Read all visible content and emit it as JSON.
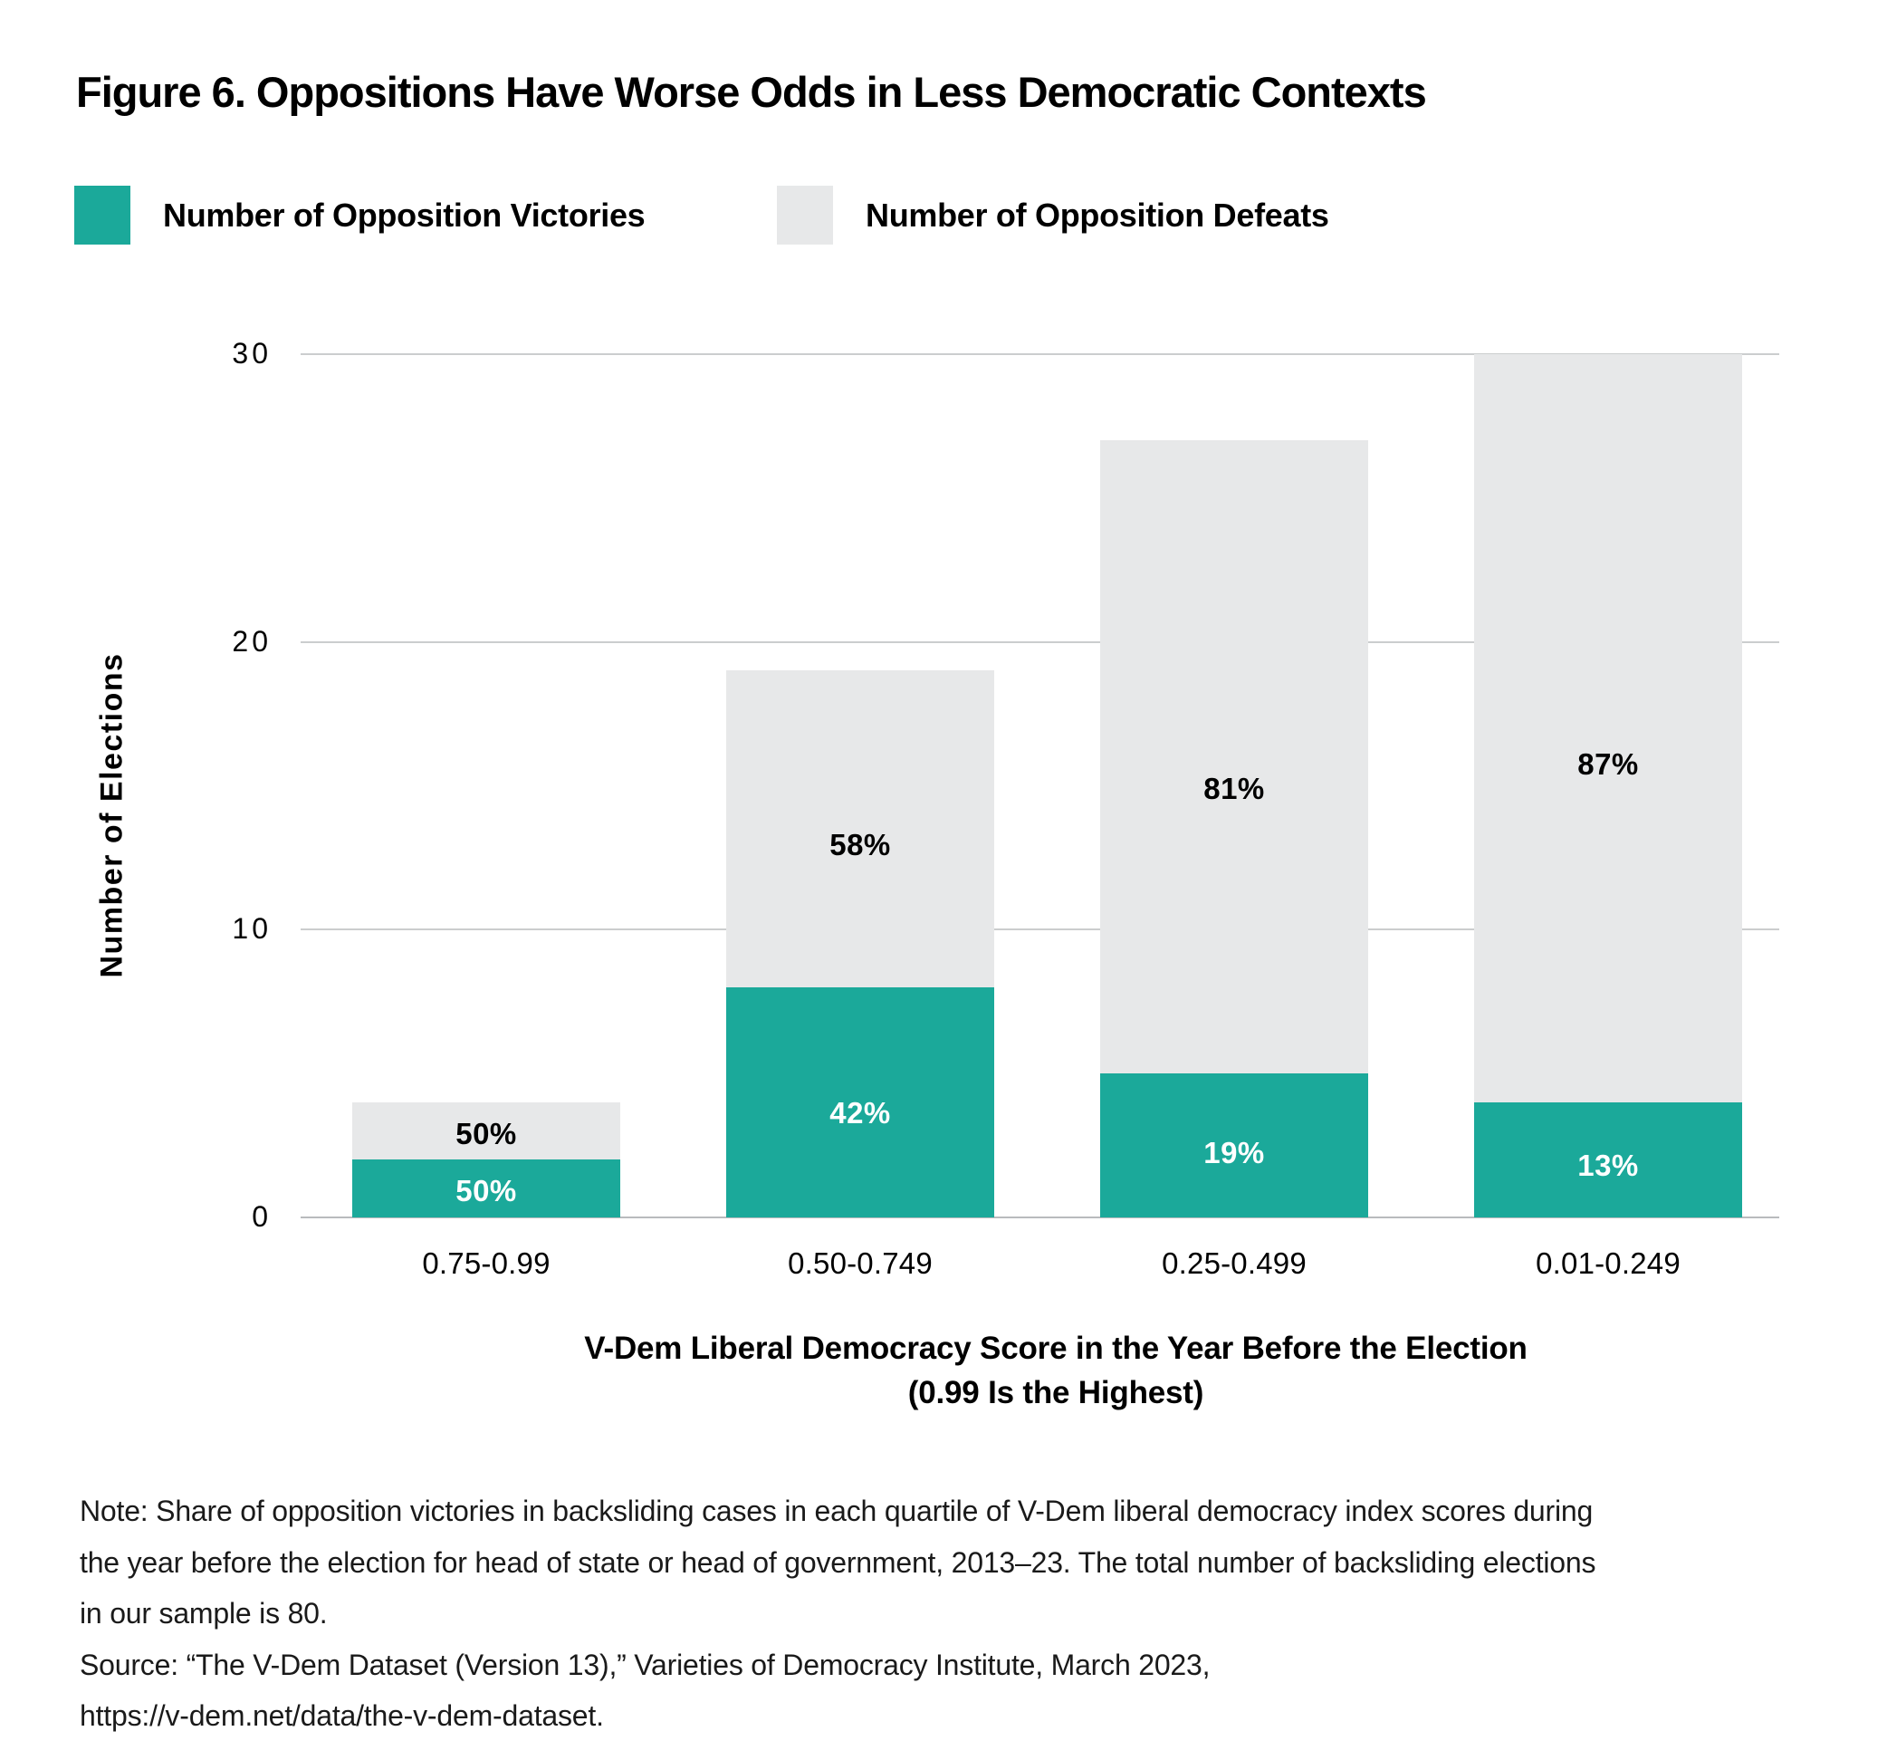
{
  "title": "Figure 6. Oppositions Have Worse Odds in Less Democratic Contexts",
  "legend": {
    "victories": {
      "label": "Number of Opposition Victories",
      "color": "#1BA99A"
    },
    "defeats": {
      "label": "Number of Opposition Defeats",
      "color": "#E7E8E9"
    }
  },
  "y_axis": {
    "title": "Number of Elections"
  },
  "x_axis": {
    "title_line1": "V-Dem Liberal Democracy Score in the Year Before the Election",
    "title_line2": "(0.99 Is the Highest)"
  },
  "note_text": "Note: Share of opposition victories in backsliding cases in each quartile of V-Dem liberal democracy index scores during\nthe year before the election for head of state or head of government, 2013–23. The total number of backsliding elections\nin our sample is 80.\nSource: “The V-Dem Dataset (Version 13),” Varieties of Democracy Institute, March 2023,\nhttps://v-dem.net/data/the-v-dem-dataset.",
  "chart_data": {
    "type": "bar",
    "stacked": true,
    "title": "Figure 6. Oppositions Have Worse Odds in Less Democratic Contexts",
    "categories": [
      "0.75-0.99",
      "0.50-0.749",
      "0.25-0.499",
      "0.01-0.249"
    ],
    "series": [
      {
        "name": "Number of Opposition Victories",
        "values": [
          2,
          8,
          5,
          4
        ],
        "pct_labels": [
          "50%",
          "42%",
          "19%",
          "13%"
        ],
        "color": "#1BA99A",
        "label_color": "#FFFFFF"
      },
      {
        "name": "Number of Opposition Defeats",
        "values": [
          2,
          11,
          22,
          26
        ],
        "pct_labels": [
          "50%",
          "58%",
          "81%",
          "87%"
        ],
        "color": "#E7E8E9",
        "label_color": "#000000"
      }
    ],
    "totals": [
      4,
      19,
      27,
      30
    ],
    "xlabel": "V-Dem Liberal Democracy Score in the Year Before the Election (0.99 Is the Highest)",
    "ylabel": "Number of Elections",
    "ylim": [
      0,
      30
    ],
    "yticks": [
      0,
      10,
      20,
      30
    ],
    "grid": "horizontal",
    "legend_position": "top-left"
  }
}
